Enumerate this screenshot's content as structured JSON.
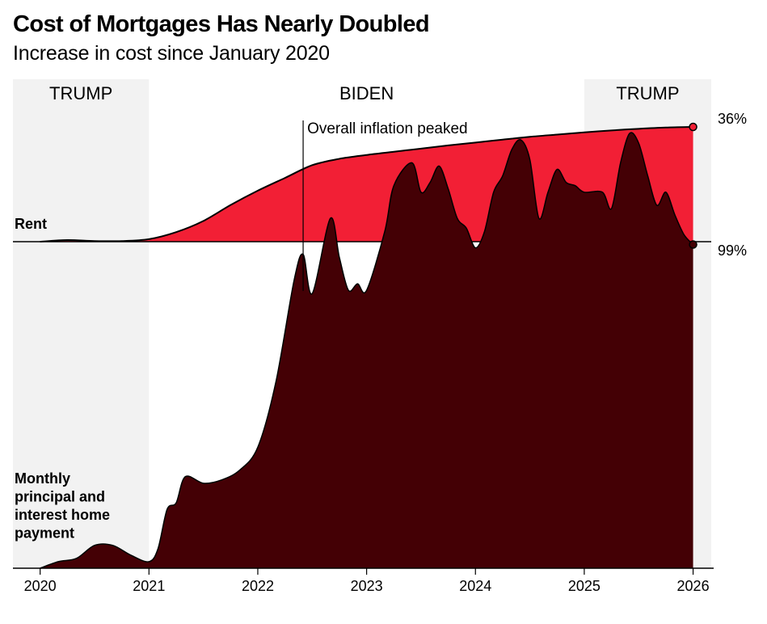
{
  "chart_data": {
    "type": "area",
    "title": "Cost of Mortgages Has Nearly Doubled",
    "subtitle": "Increase in cost since January 2020",
    "x_ticks": [
      "2020",
      "2021",
      "2022",
      "2023",
      "2024",
      "2025",
      "2026"
    ],
    "x_range": [
      "2019-10",
      "2026-03"
    ],
    "y_unit": "percent increase",
    "periods": [
      {
        "label": "TRUMP",
        "start": "2019-10",
        "end": "2021-01",
        "shaded": true
      },
      {
        "label": "BIDEN",
        "start": "2021-01",
        "end": "2025-01",
        "shaded": false
      },
      {
        "label": "TRUMP",
        "start": "2025-01",
        "end": "2026-03",
        "shaded": true
      }
    ],
    "annotation": {
      "text": "Overall inflation peaked",
      "date": "2022-06"
    },
    "series": [
      {
        "name": "Rent",
        "color": "#f21f35",
        "end_label": "36%",
        "x": [
          "2020-01",
          "2020-04",
          "2020-07",
          "2020-10",
          "2021-01",
          "2021-04",
          "2021-07",
          "2021-10",
          "2022-01",
          "2022-04",
          "2022-07",
          "2022-10",
          "2023-01",
          "2023-04",
          "2023-07",
          "2023-10",
          "2024-01",
          "2024-04",
          "2024-07",
          "2024-10",
          "2025-01",
          "2025-04",
          "2025-07",
          "2025-10",
          "2026-01"
        ],
        "values": [
          0,
          0.5,
          0.2,
          0.2,
          0.8,
          3,
          6.5,
          11.5,
          16,
          20,
          24,
          26,
          27.2,
          28.2,
          29.2,
          30.2,
          31.1,
          32,
          32.9,
          33.6,
          34.3,
          34.9,
          35.4,
          35.8,
          36
        ]
      },
      {
        "name": "Monthly principal and interest home payment",
        "color": "#440005",
        "end_label": "99%",
        "x": [
          "2020-01",
          "2020-03",
          "2020-05",
          "2020-07",
          "2020-09",
          "2020-11",
          "2021-01",
          "2021-02",
          "2021-03",
          "2021-04",
          "2021-05",
          "2021-07",
          "2021-09",
          "2021-11",
          "2022-01",
          "2022-03",
          "2022-05",
          "2022-06",
          "2022-07",
          "2022-09",
          "2022-10",
          "2022-11",
          "2022-12",
          "2023-01",
          "2023-03",
          "2023-04",
          "2023-06",
          "2023-07",
          "2023-08",
          "2023-09",
          "2023-10",
          "2023-11",
          "2023-12",
          "2024-01",
          "2024-02",
          "2024-03",
          "2024-04",
          "2024-05",
          "2024-06",
          "2024-07",
          "2024-08",
          "2024-09",
          "2024-10",
          "2024-11",
          "2024-12",
          "2025-01",
          "2025-03",
          "2025-04",
          "2025-05",
          "2025-06",
          "2025-07",
          "2025-08",
          "2025-09",
          "2025-10",
          "2025-11",
          "2025-12",
          "2026-01"
        ],
        "values": [
          0,
          2,
          3,
          7,
          7,
          4,
          2,
          6,
          18,
          20,
          28,
          26,
          27,
          30,
          37,
          57,
          88,
          96,
          84,
          107,
          95,
          85,
          87,
          85,
          103,
          117,
          124,
          115,
          118,
          123,
          116,
          107,
          104,
          98,
          103,
          115,
          120,
          128,
          131,
          125,
          107,
          115,
          122,
          118,
          117,
          115,
          115,
          110,
          124,
          133,
          130,
          120,
          111,
          115,
          108,
          102,
          99
        ]
      }
    ]
  }
}
